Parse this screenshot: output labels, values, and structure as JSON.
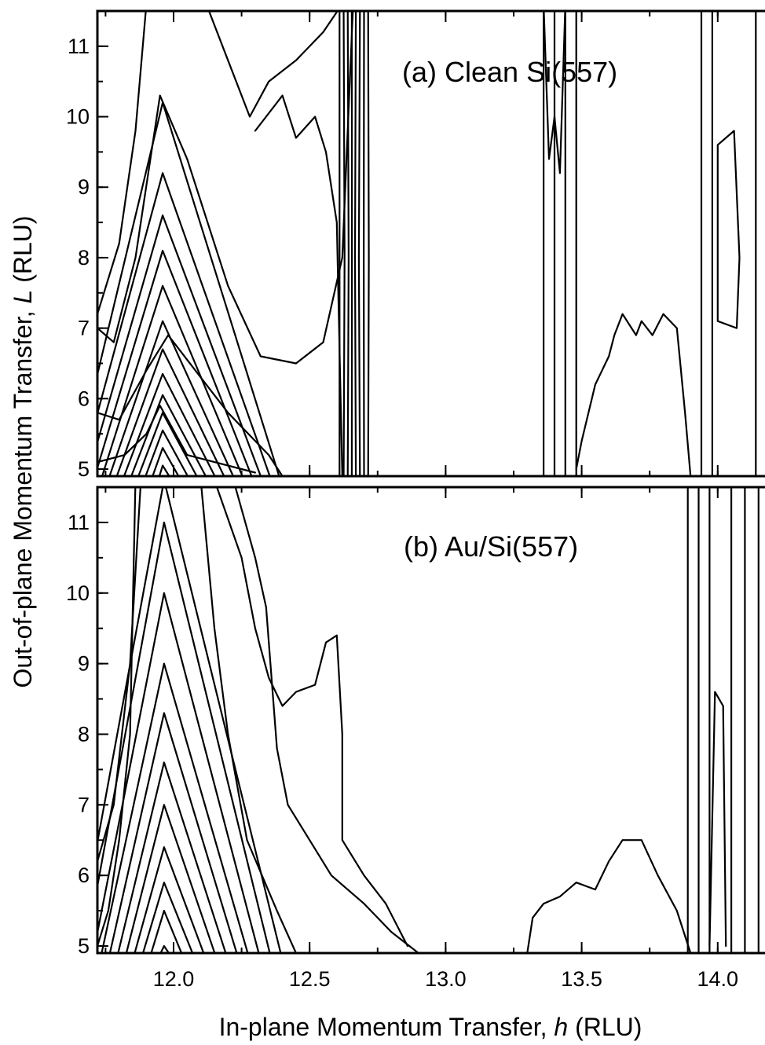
{
  "chart_data": [
    {
      "type": "contour",
      "panel_label": "(a) Clean Si(557)",
      "xlabel": "In-plane Momentum Transfer, h (RLU)",
      "ylabel": "Out-of-plane Momentum Transfer, L (RLU)",
      "xlim": [
        11.72,
        14.22
      ],
      "ylim": [
        4.9,
        11.5
      ],
      "x_ticks": [
        "12.0",
        "12.5",
        "13.0",
        "13.5",
        "14.0"
      ],
      "y_ticks": [
        "5",
        "6",
        "7",
        "8",
        "9",
        "10",
        "11"
      ],
      "features": [
        {
          "name": "peak",
          "h": 11.97,
          "L_max_contour": 9.2
        },
        {
          "name": "rod",
          "h": 12.66,
          "L_range": [
            4.9,
            11.5
          ]
        },
        {
          "name": "rod",
          "h": 13.44,
          "L_range": [
            4.9,
            11.5
          ]
        },
        {
          "name": "rod",
          "h": 14.03,
          "L_range": [
            4.9,
            11.5
          ]
        }
      ]
    },
    {
      "type": "contour",
      "panel_label": "(b) Au/Si(557)",
      "xlabel": "In-plane Momentum Transfer, h (RLU)",
      "ylabel": "Out-of-plane Momentum Transfer, L (RLU)",
      "xlim": [
        11.72,
        14.22
      ],
      "ylim": [
        4.9,
        11.5
      ],
      "x_ticks": [
        "12.0",
        "12.5",
        "13.0",
        "13.5",
        "14.0"
      ],
      "y_ticks": [
        "5",
        "6",
        "7",
        "8",
        "9",
        "10",
        "11"
      ],
      "features": [
        {
          "name": "peak",
          "h": 11.97,
          "L_max_contour": 11.5
        },
        {
          "name": "rod",
          "h": 14.0,
          "L_range": [
            4.9,
            11.5
          ]
        }
      ]
    }
  ],
  "labels": {
    "panel_a": "(a) Clean Si(557)",
    "panel_b": "(b) Au/Si(557)",
    "ylabel": "Out-of-plane Momentum Transfer, L (RLU)",
    "xlabel": "In-plane Momentum Transfer, h (RLU)"
  }
}
